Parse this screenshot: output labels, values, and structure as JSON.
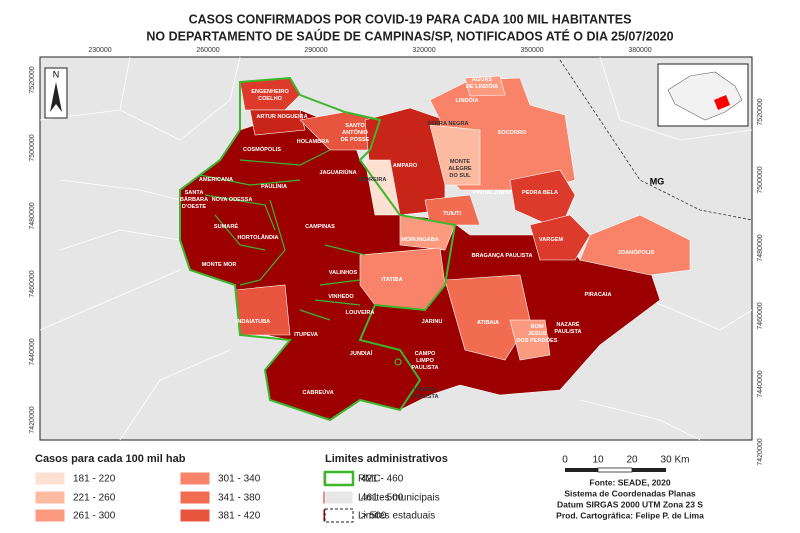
{
  "header": {
    "title_lines": [
      "CASOS CONFIRMADOS POR COVID-19 PARA CADA 100 MIL HABITANTES",
      "NO DEPARTAMENTO DE SAÚDE DE CAMPINAS/SP, NOTIFICADOS ATÉ O DIA 25/07/2020"
    ]
  },
  "map": {
    "north_label": "N",
    "x_coords": [
      "230000",
      "260000",
      "290000",
      "320000",
      "350000",
      "380000"
    ],
    "y_coords": [
      "7520000",
      "7500000",
      "7480000",
      "7460000",
      "7440000",
      "7420000"
    ],
    "state_label": "MG",
    "municipalities": [
      {
        "lines": [
          "ENGENHEIRO",
          "COELHO"
        ]
      },
      {
        "lines": [
          "ARTUR NOGUEIRA"
        ]
      },
      {
        "lines": [
          "SANTO",
          "ANTÔNIO",
          "DE POSSE"
        ]
      },
      {
        "lines": [
          "HOLAMBRA"
        ]
      },
      {
        "lines": [
          "COSMÓPOLIS"
        ]
      },
      {
        "lines": [
          "JAGUARIÚNA"
        ]
      },
      {
        "lines": [
          "PEDREIRA"
        ]
      },
      {
        "lines": [
          "AMPARO"
        ]
      },
      {
        "lines": [
          "SERRA NEGRA"
        ]
      },
      {
        "lines": [
          "ÁGUAS",
          "DE LINDÓIA"
        ]
      },
      {
        "lines": [
          "LINDÓIA"
        ]
      },
      {
        "lines": [
          "SOCORRO"
        ]
      },
      {
        "lines": [
          "MONTE",
          "ALEGRE",
          "DO SUL"
        ]
      },
      {
        "lines": [
          "PINHALZINHO"
        ]
      },
      {
        "lines": [
          "PEDRA BELA"
        ]
      },
      {
        "lines": [
          "TUIUTI"
        ]
      },
      {
        "lines": [
          "AMERICANA"
        ]
      },
      {
        "lines": [
          "PAULÍNIA"
        ]
      },
      {
        "lines": [
          "NOVA ODESSA"
        ]
      },
      {
        "lines": [
          "SANTA",
          "BÁRBARA",
          "D'OESTE"
        ]
      },
      {
        "lines": [
          "SUMARÉ"
        ]
      },
      {
        "lines": [
          "HORTOLÂNDIA"
        ]
      },
      {
        "lines": [
          "CAMPINAS"
        ]
      },
      {
        "lines": [
          "MORUNGABA"
        ]
      },
      {
        "lines": [
          "VARGEM"
        ]
      },
      {
        "lines": [
          "JOANÓPOLIS"
        ]
      },
      {
        "lines": [
          "BRAGANÇA PAULISTA"
        ]
      },
      {
        "lines": [
          "MONTE MOR"
        ]
      },
      {
        "lines": [
          "VALINHOS"
        ]
      },
      {
        "lines": [
          "ITATIBA"
        ]
      },
      {
        "lines": [
          "VINHEDO"
        ]
      },
      {
        "lines": [
          "LOUVEIRA"
        ]
      },
      {
        "lines": [
          "PIRACAIA"
        ]
      },
      {
        "lines": [
          "INDAIATUBA"
        ]
      },
      {
        "lines": [
          "ATIBAIA"
        ]
      },
      {
        "lines": [
          "ITUPEVA"
        ]
      },
      {
        "lines": [
          "JARINU"
        ]
      },
      {
        "lines": [
          "BOM",
          "JESUS",
          "DOS PERDÕES"
        ]
      },
      {
        "lines": [
          "NAZARÉ",
          "PAULISTA"
        ]
      },
      {
        "lines": [
          "JUNDIAÍ"
        ]
      },
      {
        "lines": [
          "CAMPO",
          "LIMPO",
          "PAULISTA"
        ]
      },
      {
        "lines": [
          "VÁRZEA",
          "PAULISTA"
        ]
      },
      {
        "lines": [
          "CABREÚVA"
        ]
      }
    ]
  },
  "legend": {
    "title": "Casos para cada 100 mil hab",
    "classes": [
      {
        "label": "181 - 220",
        "color": "#fee0d2"
      },
      {
        "label": "221 - 260",
        "color": "#fcbba1"
      },
      {
        "label": "261 - 300",
        "color": "#fc9a80"
      },
      {
        "label": "301 - 340",
        "color": "#f98368"
      },
      {
        "label": "341 - 380",
        "color": "#f26c52"
      },
      {
        "label": "381 - 420",
        "color": "#e8553f"
      },
      {
        "label": "421 - 460",
        "color": "#dc3a2b"
      },
      {
        "label": "461 - 500",
        "color": "#c92418"
      },
      {
        "label": "> 500",
        "color": "#9c0000"
      }
    ]
  },
  "admin_legend": {
    "title": "Limites administrativos",
    "items": [
      "RMC",
      "Limites municipais",
      "Limites estaduais"
    ]
  },
  "scale": {
    "labels": [
      "0",
      "10",
      "20",
      "30 Km"
    ]
  },
  "credits": [
    "Fonte: SEADE, 2020",
    "Sistema de Coordenadas Planas",
    "Datum SIRGAS 2000 UTM Zona 23 S",
    "Prod. Cartográfica: Felipe P. de Lima"
  ]
}
